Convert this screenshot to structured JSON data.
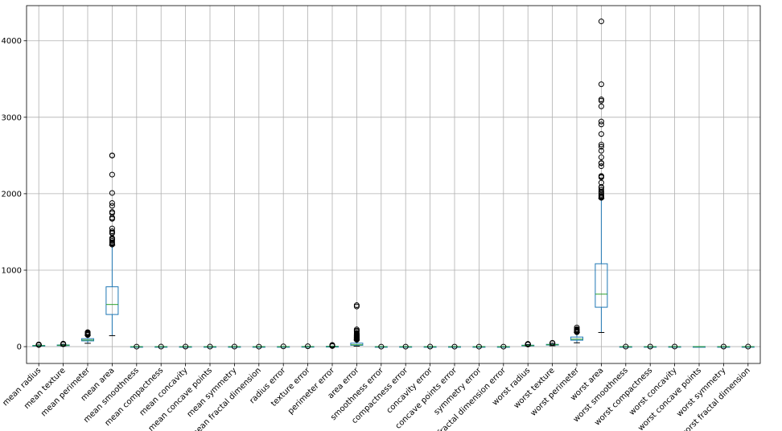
{
  "chart_data": {
    "type": "boxplot",
    "title": "",
    "xlabel": "",
    "ylabel": "",
    "ylim": [
      -220,
      4460
    ],
    "yticks": [
      0,
      1000,
      2000,
      3000,
      4000
    ],
    "grid": true,
    "colors": {
      "box": "#1f77b4",
      "median": "#2ca02c",
      "whisker": "#000000",
      "grid": "#b0b0b0"
    },
    "categories": [
      "mean radius",
      "mean texture",
      "mean perimeter",
      "mean area",
      "mean smoothness",
      "mean compactness",
      "mean concavity",
      "mean concave points",
      "mean symmetry",
      "mean fractal dimension",
      "radius error",
      "texture error",
      "perimeter error",
      "area error",
      "smoothness error",
      "compactness error",
      "concavity error",
      "concave points error",
      "symmetry error",
      "fractal dimension error",
      "worst radius",
      "worst texture",
      "worst perimeter",
      "worst area",
      "worst smoothness",
      "worst compactness",
      "worst concavity",
      "worst concave points",
      "worst symmetry",
      "worst fractal dimension"
    ],
    "boxes": [
      {
        "min": 6.98,
        "q1": 11.7,
        "median": 13.37,
        "q3": 15.78,
        "max": 21.9,
        "fliers": [
          22.3,
          23.3,
          24.3,
          25.2,
          27.2,
          28.1
        ]
      },
      {
        "min": 9.71,
        "q1": 16.17,
        "median": 18.84,
        "q3": 21.8,
        "max": 30.0,
        "fliers": [
          30.6,
          32.5,
          33.8,
          39.3
        ]
      },
      {
        "min": 43.79,
        "q1": 75.17,
        "median": 86.24,
        "q3": 104.1,
        "max": 147.3,
        "fliers": [
          152,
          158,
          166,
          171,
          174,
          182,
          186,
          188.5
        ]
      },
      {
        "min": 143.5,
        "q1": 420.3,
        "median": 551.1,
        "q3": 782.7,
        "max": 1326,
        "fliers": [
          1335,
          1347,
          1364,
          1384,
          1403,
          1407,
          1419,
          1482,
          1491,
          1509,
          1546,
          1671,
          1685,
          1686,
          1747,
          1761,
          1841,
          1878,
          2010,
          2250,
          2499,
          2501
        ]
      },
      {
        "min": 0.05,
        "q1": 0.086,
        "median": 0.096,
        "q3": 0.105,
        "max": 0.133,
        "fliers": [
          0.16
        ]
      },
      {
        "min": 0.02,
        "q1": 0.065,
        "median": 0.093,
        "q3": 0.13,
        "max": 0.23,
        "fliers": [
          0.35
        ]
      },
      {
        "min": 0,
        "q1": 0.03,
        "median": 0.06,
        "q3": 0.13,
        "max": 0.28,
        "fliers": [
          0.43
        ]
      },
      {
        "min": 0,
        "q1": 0.02,
        "median": 0.034,
        "q3": 0.074,
        "max": 0.16,
        "fliers": [
          0.2
        ]
      },
      {
        "min": 0.11,
        "q1": 0.16,
        "median": 0.18,
        "q3": 0.2,
        "max": 0.25,
        "fliers": [
          0.3
        ]
      },
      {
        "min": 0.05,
        "q1": 0.058,
        "median": 0.062,
        "q3": 0.066,
        "max": 0.079,
        "fliers": [
          0.097
        ]
      },
      {
        "min": 0.11,
        "q1": 0.23,
        "median": 0.32,
        "q3": 0.48,
        "max": 0.84,
        "fliers": [
          2.87
        ]
      },
      {
        "min": 0.36,
        "q1": 0.83,
        "median": 1.1,
        "q3": 1.47,
        "max": 2.4,
        "fliers": [
          4.88
        ]
      },
      {
        "min": 0.76,
        "q1": 1.6,
        "median": 2.29,
        "q3": 3.36,
        "max": 5.98,
        "fliers": [
          8,
          10,
          12,
          15,
          18,
          21.98
        ]
      },
      {
        "min": 6.8,
        "q1": 17.85,
        "median": 24.53,
        "q3": 45.19,
        "max": 86,
        "fliers": [
          90,
          95,
          100,
          105,
          110,
          115,
          120,
          125,
          130,
          135,
          140,
          145,
          150,
          155,
          160,
          170,
          180,
          200,
          210,
          225,
          525,
          542
        ]
      },
      {
        "min": 0.002,
        "q1": 0.005,
        "median": 0.006,
        "q3": 0.008,
        "max": 0.013,
        "fliers": [
          0.03
        ]
      },
      {
        "min": 0.002,
        "q1": 0.013,
        "median": 0.02,
        "q3": 0.032,
        "max": 0.06,
        "fliers": [
          0.135
        ]
      },
      {
        "min": 0,
        "q1": 0.015,
        "median": 0.026,
        "q3": 0.042,
        "max": 0.08,
        "fliers": [
          0.4
        ]
      },
      {
        "min": 0,
        "q1": 0.008,
        "median": 0.011,
        "q3": 0.015,
        "max": 0.025,
        "fliers": [
          0.05
        ]
      },
      {
        "min": 0.008,
        "q1": 0.015,
        "median": 0.019,
        "q3": 0.023,
        "max": 0.036,
        "fliers": [
          0.079
        ]
      },
      {
        "min": 0.001,
        "q1": 0.002,
        "median": 0.003,
        "q3": 0.0045,
        "max": 0.008,
        "fliers": [
          0.03
        ]
      },
      {
        "min": 7.93,
        "q1": 13.01,
        "median": 14.97,
        "q3": 18.79,
        "max": 27.5,
        "fliers": [
          28.4,
          30,
          31.5,
          33.1,
          36
        ]
      },
      {
        "min": 12.02,
        "q1": 21.08,
        "median": 25.41,
        "q3": 29.72,
        "max": 42.8,
        "fliers": [
          45,
          47.2,
          49.5
        ]
      },
      {
        "min": 50.41,
        "q1": 84.11,
        "median": 97.66,
        "q3": 125.4,
        "max": 187.3,
        "fliers": [
          188,
          195,
          200,
          206,
          211,
          215,
          220,
          229,
          251.2
        ]
      },
      {
        "min": 185.2,
        "q1": 515.3,
        "median": 686.5,
        "q3": 1084,
        "max": 1937,
        "fliers": [
          1946,
          1956,
          1972,
          1986,
          2010,
          2022,
          2027,
          2053,
          2081,
          2089,
          2145,
          2215,
          2227,
          2232,
          2360,
          2398,
          2403,
          2477,
          2562,
          2615,
          2642,
          2781,
          2906,
          2944,
          3143,
          3216,
          3234,
          3432,
          4254
        ]
      },
      {
        "min": 0.07,
        "q1": 0.117,
        "median": 0.131,
        "q3": 0.146,
        "max": 0.19,
        "fliers": [
          0.22
        ]
      },
      {
        "min": 0.03,
        "q1": 0.147,
        "median": 0.212,
        "q3": 0.339,
        "max": 0.62,
        "fliers": [
          1.06
        ]
      },
      {
        "min": 0,
        "q1": 0.115,
        "median": 0.227,
        "q3": 0.383,
        "max": 0.79,
        "fliers": [
          1.25
        ]
      },
      {
        "min": 0,
        "q1": 0.065,
        "median": 0.1,
        "q3": 0.161,
        "max": 0.29,
        "fliers": []
      },
      {
        "min": 0.16,
        "q1": 0.25,
        "median": 0.28,
        "q3": 0.32,
        "max": 0.42,
        "fliers": [
          0.66
        ]
      },
      {
        "min": 0.055,
        "q1": 0.071,
        "median": 0.08,
        "q3": 0.092,
        "max": 0.12,
        "fliers": [
          0.21
        ]
      }
    ]
  }
}
